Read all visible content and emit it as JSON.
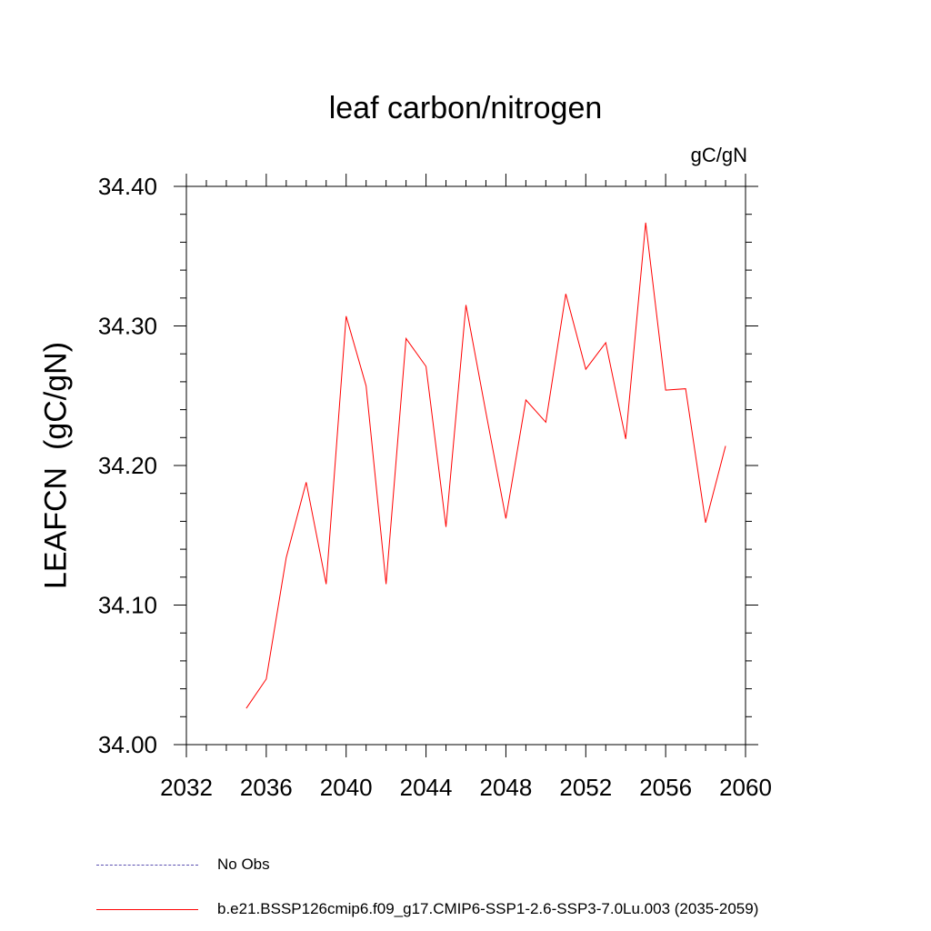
{
  "chart_data": {
    "type": "line",
    "title": "leaf carbon/nitrogen",
    "units": "gC/gN",
    "ylabel": "LEAFCN  (gC/gN)",
    "xlabel": "",
    "xlim": [
      2032,
      2060
    ],
    "ylim": [
      34.0,
      34.4
    ],
    "xticks": [
      2032,
      2036,
      2040,
      2044,
      2048,
      2052,
      2056,
      2060
    ],
    "yticks": [
      "34.00",
      "34.10",
      "34.20",
      "34.30",
      "34.40"
    ],
    "grid": false,
    "legend_position": "bottom",
    "series": [
      {
        "name": "b.e21.BSSP126cmip6.f09_g17.CMIP6-SSP1-2.6-SSP3-7.0Lu.003 (2035-2059)",
        "color": "#ff0000",
        "x": [
          2035,
          2036,
          2037,
          2038,
          2039,
          2040,
          2041,
          2042,
          2043,
          2044,
          2045,
          2046,
          2047,
          2048,
          2049,
          2050,
          2051,
          2052,
          2053,
          2054,
          2055,
          2056,
          2057,
          2058,
          2059
        ],
        "y": [
          34.026,
          34.047,
          34.134,
          34.188,
          34.115,
          34.307,
          34.257,
          34.115,
          34.291,
          34.271,
          34.156,
          34.315,
          34.238,
          34.162,
          34.247,
          34.231,
          34.323,
          34.269,
          34.288,
          34.219,
          34.374,
          34.254,
          34.255,
          34.159,
          34.214
        ]
      }
    ]
  },
  "legend": {
    "obs_label": "No Obs",
    "obs_color": "#5a4fb0",
    "run_label": "b.e21.BSSP126cmip6.f09_g17.CMIP6-SSP1-2.6-SSP3-7.0Lu.003 (2035-2059)",
    "run_color": "#ff0000"
  }
}
